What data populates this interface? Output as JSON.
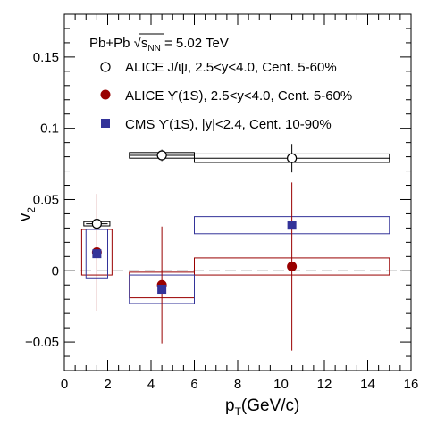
{
  "chart_data": {
    "type": "scatter",
    "xlabel": {
      "main": "p",
      "sub": "T",
      "rest": "(GeV/c)"
    },
    "ylabel": {
      "main": "v",
      "sub": "2"
    },
    "xlim": [
      0,
      16
    ],
    "ylim": [
      -0.07,
      0.18
    ],
    "x_ticks": [
      0,
      2,
      4,
      6,
      8,
      10,
      12,
      14,
      16
    ],
    "x_tick_labels": [
      "0",
      "2",
      "4",
      "6",
      "8",
      "10",
      "12",
      "14",
      "16"
    ],
    "y_ticks": [
      -0.05,
      0,
      0.05,
      0.1,
      0.15
    ],
    "y_tick_labels": [
      "−0.05",
      "0",
      "0.05",
      "0.1",
      "0.15"
    ],
    "zero_line": true,
    "grid": false,
    "legend_position": "top-left",
    "header": {
      "pre": "Pb+Pb ",
      "sqrt": "√",
      "s": "s",
      "sub": "NN",
      "post": " = 5.02 TeV"
    },
    "series": [
      {
        "name": "ALICE J/ψ, 2.5<y<4.0, Cent. 5-60%",
        "marker": "open-circle",
        "color": "#000000",
        "points": [
          {
            "x": 1.5,
            "y": 0.033,
            "x_low": 1.0,
            "x_high": 2.0,
            "stat": 0.003,
            "sys": 0.0015,
            "box_x": [
              0.9,
              2.1
            ]
          },
          {
            "x": 4.5,
            "y": 0.081,
            "x_low": 3.0,
            "x_high": 6.0,
            "stat": 0.004,
            "sys": 0.002,
            "box_x": [
              3.0,
              6.0
            ]
          },
          {
            "x": 10.5,
            "y": 0.079,
            "x_low": 6.0,
            "x_high": 15.0,
            "stat": 0.01,
            "sys": 0.003,
            "box_x": [
              6.0,
              15.0
            ]
          }
        ]
      },
      {
        "name": "ALICE ϒ(1S), 2.5<y<4.0, Cent. 5-60%",
        "marker": "filled-circle",
        "color": "#990000",
        "points": [
          {
            "x": 1.5,
            "y": 0.013,
            "x_low": 1.5,
            "x_high": 1.5,
            "stat": 0.041,
            "sys": 0.016,
            "box_x": [
              0.8,
              2.2
            ]
          },
          {
            "x": 4.5,
            "y": -0.01,
            "x_low": 4.5,
            "x_high": 4.5,
            "stat": 0.041,
            "sys": 0.009,
            "box_x": [
              3.0,
              6.0
            ]
          },
          {
            "x": 10.5,
            "y": 0.003,
            "x_low": 10.5,
            "x_high": 10.5,
            "stat": 0.059,
            "sys": 0.006,
            "box_x": [
              6.0,
              15.0
            ]
          }
        ]
      },
      {
        "name": "CMS ϒ(1S), |y|<2.4, Cent. 10-90%",
        "marker": "filled-square",
        "color": "#333399",
        "points": [
          {
            "x": 1.5,
            "y": 0.012,
            "x_low": 1.5,
            "x_high": 1.5,
            "stat": 0.0,
            "sys": 0.017,
            "box_x": [
              1.0,
              2.0
            ]
          },
          {
            "x": 4.5,
            "y": -0.013,
            "x_low": 4.5,
            "x_high": 4.5,
            "stat": 0.0,
            "sys": 0.01,
            "box_x": [
              3.0,
              6.0
            ]
          },
          {
            "x": 10.5,
            "y": 0.032,
            "x_low": 10.5,
            "x_high": 10.5,
            "stat": 0.0,
            "sys": 0.006,
            "box_x": [
              6.0,
              15.0
            ]
          }
        ]
      }
    ]
  }
}
